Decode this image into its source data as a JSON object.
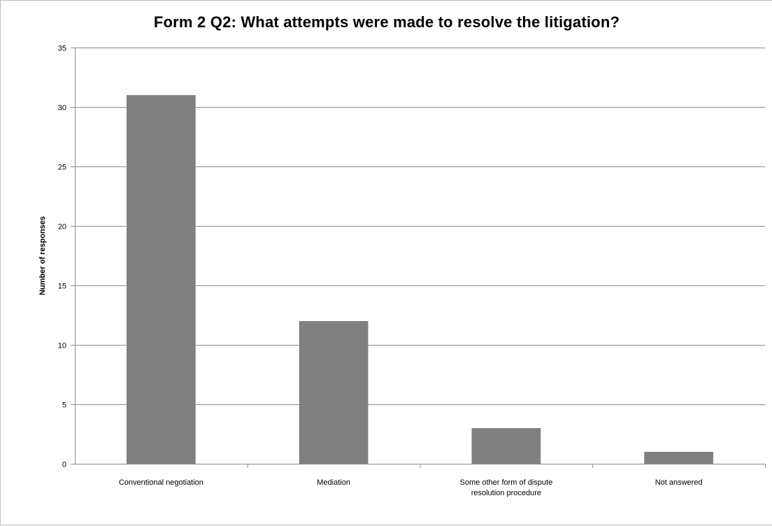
{
  "chart_data": {
    "type": "bar",
    "title": "Form 2 Q2: What attempts were made to resolve the litigation?",
    "xlabel": "",
    "ylabel": "Number of responses",
    "categories": [
      [
        "Conventional negotiation"
      ],
      [
        "Mediation"
      ],
      [
        "Some other form of dispute",
        "resolution procedure"
      ],
      [
        "Not answered"
      ]
    ],
    "values": [
      31,
      12,
      3,
      1
    ],
    "ylim": [
      0,
      35
    ],
    "yticks": [
      0,
      5,
      10,
      15,
      20,
      25,
      30,
      35
    ],
    "grid": true,
    "legend": "none",
    "colors": {
      "bar": "#808080",
      "grid": "#8c8c8c",
      "axis": "#8c8c8c"
    }
  }
}
